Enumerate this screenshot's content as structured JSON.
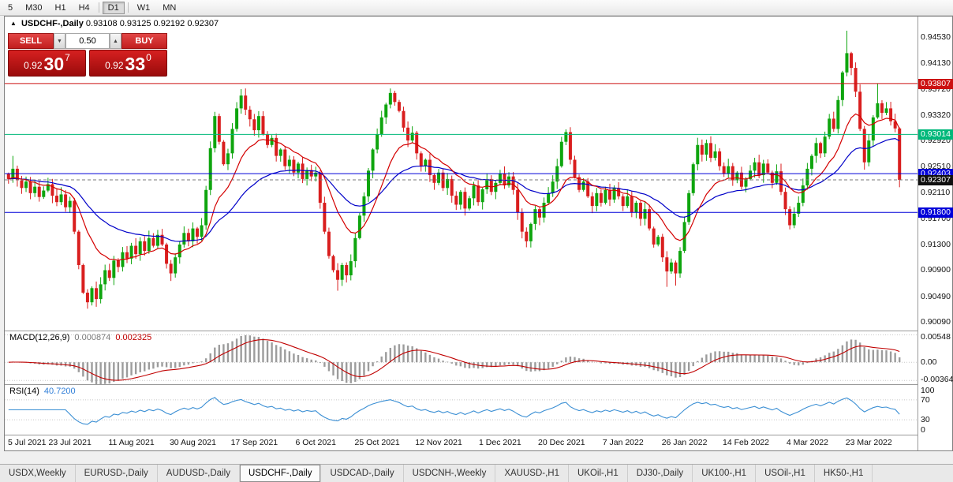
{
  "colors": {
    "candle_up": "#0ea50e",
    "candle_down": "#d91e1e",
    "ma_fast": "#d40000",
    "ma_slow": "#0000c8",
    "macd_hist": "#9c9c9c",
    "macd_signal": "#c00000",
    "rsi_line": "#3b8fd4",
    "level_gray_dotted": "#c8c8c8"
  },
  "toolbar": {
    "items": [
      "5",
      "M30",
      "H1",
      "H4",
      "D1",
      "W1",
      "MN"
    ],
    "active": "D1",
    "separators_after": [
      "H4",
      "D1"
    ]
  },
  "chart": {
    "expand_icon": "▲",
    "symbol_period": "USDCHF-,Daily",
    "ohlc": "0.93108 0.93125 0.92192 0.92307"
  },
  "trade_panel": {
    "sell_label": "SELL",
    "buy_label": "BUY",
    "volume": "0.50",
    "spin_down_icon": "▼",
    "spin_up_icon": "▲",
    "sell": {
      "prefix": "0.92",
      "pips": "30",
      "point": "7"
    },
    "buy": {
      "prefix": "0.92",
      "pips": "33",
      "point": "0"
    }
  },
  "price_axis": {
    "range": {
      "max": 0.9485,
      "min": 0.8996
    },
    "labels": [
      "0.94530",
      "0.94130",
      "0.93720",
      "0.93320",
      "0.92920",
      "0.92510",
      "0.92110",
      "0.91700",
      "0.91300",
      "0.90900",
      "0.90490",
      "0.90090"
    ]
  },
  "levels": [
    {
      "label": "0.93807",
      "value": 0.93807,
      "color": "#cc1111",
      "line": "solid"
    },
    {
      "label": "0.93014",
      "value": 0.93014,
      "color": "#00b87a",
      "line": "solid"
    },
    {
      "label": "0.92403",
      "value": 0.92403,
      "color": "#0000d9",
      "line": "solid"
    },
    {
      "label": "0.91800",
      "value": 0.918,
      "color": "#0000d9",
      "line": "solid"
    },
    {
      "label": "0.92307",
      "value": 0.92307,
      "color": "#101010",
      "line": "dashed"
    }
  ],
  "chart_data": {
    "type": "candlestick",
    "symbol": "USDCHF-",
    "timeframe": "Daily",
    "first_open": 0.924,
    "closes": [
      0.9232,
      0.9248,
      0.923,
      0.9218,
      0.9228,
      0.921,
      0.922,
      0.9204,
      0.9214,
      0.9224,
      0.9206,
      0.9196,
      0.9208,
      0.9188,
      0.9198,
      0.915,
      0.9098,
      0.9055,
      0.904,
      0.9062,
      0.9045,
      0.9068,
      0.909,
      0.9078,
      0.9105,
      0.9095,
      0.9118,
      0.9108,
      0.9128,
      0.9115,
      0.9135,
      0.912,
      0.914,
      0.9128,
      0.9145,
      0.913,
      0.91,
      0.9085,
      0.911,
      0.913,
      0.9148,
      0.9135,
      0.9155,
      0.9142,
      0.916,
      0.9215,
      0.928,
      0.933,
      0.929,
      0.9255,
      0.9272,
      0.931,
      0.9342,
      0.9362,
      0.934,
      0.9325,
      0.9308,
      0.933,
      0.9302,
      0.9285,
      0.9296,
      0.9268,
      0.9278,
      0.9252,
      0.9262,
      0.9242,
      0.9256,
      0.9232,
      0.9246,
      0.9236,
      0.9242,
      0.9195,
      0.915,
      0.9112,
      0.909,
      0.9075,
      0.9098,
      0.9082,
      0.9104,
      0.914,
      0.9175,
      0.9205,
      0.9245,
      0.9278,
      0.9302,
      0.9328,
      0.9348,
      0.9366,
      0.9352,
      0.9338,
      0.9312,
      0.9292,
      0.9304,
      0.9272,
      0.9252,
      0.9262,
      0.9238,
      0.9226,
      0.9242,
      0.9218,
      0.9232,
      0.9206,
      0.9192,
      0.9212,
      0.9186,
      0.9202,
      0.9222,
      0.9196,
      0.9216,
      0.9232,
      0.9212,
      0.9226,
      0.924,
      0.9222,
      0.9236,
      0.9215,
      0.918,
      0.915,
      0.9135,
      0.9162,
      0.9185,
      0.9172,
      0.9195,
      0.921,
      0.9228,
      0.9252,
      0.929,
      0.9305,
      0.9262,
      0.9235,
      0.9215,
      0.9228,
      0.9205,
      0.919,
      0.921,
      0.9195,
      0.9215,
      0.92,
      0.9218,
      0.9205,
      0.919,
      0.9205,
      0.918,
      0.9195,
      0.917,
      0.9185,
      0.9155,
      0.913,
      0.9142,
      0.911,
      0.9088,
      0.9102,
      0.9085,
      0.912,
      0.9165,
      0.921,
      0.9255,
      0.9285,
      0.927,
      0.9288,
      0.9265,
      0.9275,
      0.9252,
      0.924,
      0.9252,
      0.923,
      0.9242,
      0.922,
      0.9232,
      0.9245,
      0.9258,
      0.9238,
      0.9256,
      0.9242,
      0.9226,
      0.9244,
      0.9212,
      0.9185,
      0.916,
      0.9178,
      0.9195,
      0.9222,
      0.9248,
      0.9268,
      0.9288,
      0.9272,
      0.9298,
      0.9326,
      0.931,
      0.9355,
      0.9398,
      0.9428,
      0.9405,
      0.9368,
      0.931,
      0.9258,
      0.9292,
      0.9328,
      0.935,
      0.9335,
      0.9342,
      0.9322,
      0.93108,
      0.92307
    ],
    "wick_overrides": {
      "1": {
        "h": 0.9268
      },
      "18": {
        "l": 0.903
      },
      "20": {
        "l": 0.9033
      },
      "53": {
        "h": 0.9372
      },
      "75": {
        "l": 0.9058
      },
      "87": {
        "h": 0.9373
      },
      "150": {
        "l": 0.9064
      },
      "152": {
        "l": 0.9066
      },
      "191": {
        "h": 0.9463
      },
      "198": {
        "h": 0.9381
      },
      "203": {
        "h": 0.93125,
        "l": 0.92192
      }
    },
    "ma_fast_period": 13,
    "ma_slow_period": 34
  },
  "macd_panel": {
    "title": "MACD(12,26,9)",
    "value_main": "0.000874",
    "value_signal": "0.002325",
    "axis_labels": [
      "0.00548",
      "0.00",
      "-0.00364"
    ],
    "axis_values": [
      0.00548,
      0,
      -0.00364
    ],
    "range": {
      "max": 0.0062,
      "min": -0.0044
    },
    "fast": 12,
    "slow": 26,
    "signal": 9
  },
  "rsi_panel": {
    "title": "RSI(14)",
    "value": "40.7200",
    "period": 14,
    "axis_labels": [
      "100",
      "70",
      "30",
      "0"
    ],
    "axis_values": [
      100,
      70,
      30,
      0
    ],
    "level_lines": [
      70,
      30
    ]
  },
  "date_axis": {
    "labels": [
      "5 Jul 2021",
      "23 Jul 2021",
      "11 Aug 2021",
      "30 Aug 2021",
      "17 Sep 2021",
      "6 Oct 2021",
      "25 Oct 2021",
      "12 Nov 2021",
      "1 Dec 2021",
      "20 Dec 2021",
      "7 Jan 2022",
      "26 Jan 2022",
      "14 Feb 2022",
      "4 Mar 2022",
      "23 Mar 2022"
    ],
    "bars_per_label": 14
  },
  "tabs": {
    "items": [
      "USDX,Weekly",
      "EURUSD-,Daily",
      "AUDUSD-,Daily",
      "USDCHF-,Daily",
      "USDCAD-,Daily",
      "USDCNH-,Weekly",
      "XAUUSD-,H1",
      "UKOil-,H1",
      "DJ30-,Daily",
      "UK100-,H1",
      "USOil-,H1",
      "HK50-,H1"
    ],
    "active": "USDCHF-,Daily"
  }
}
